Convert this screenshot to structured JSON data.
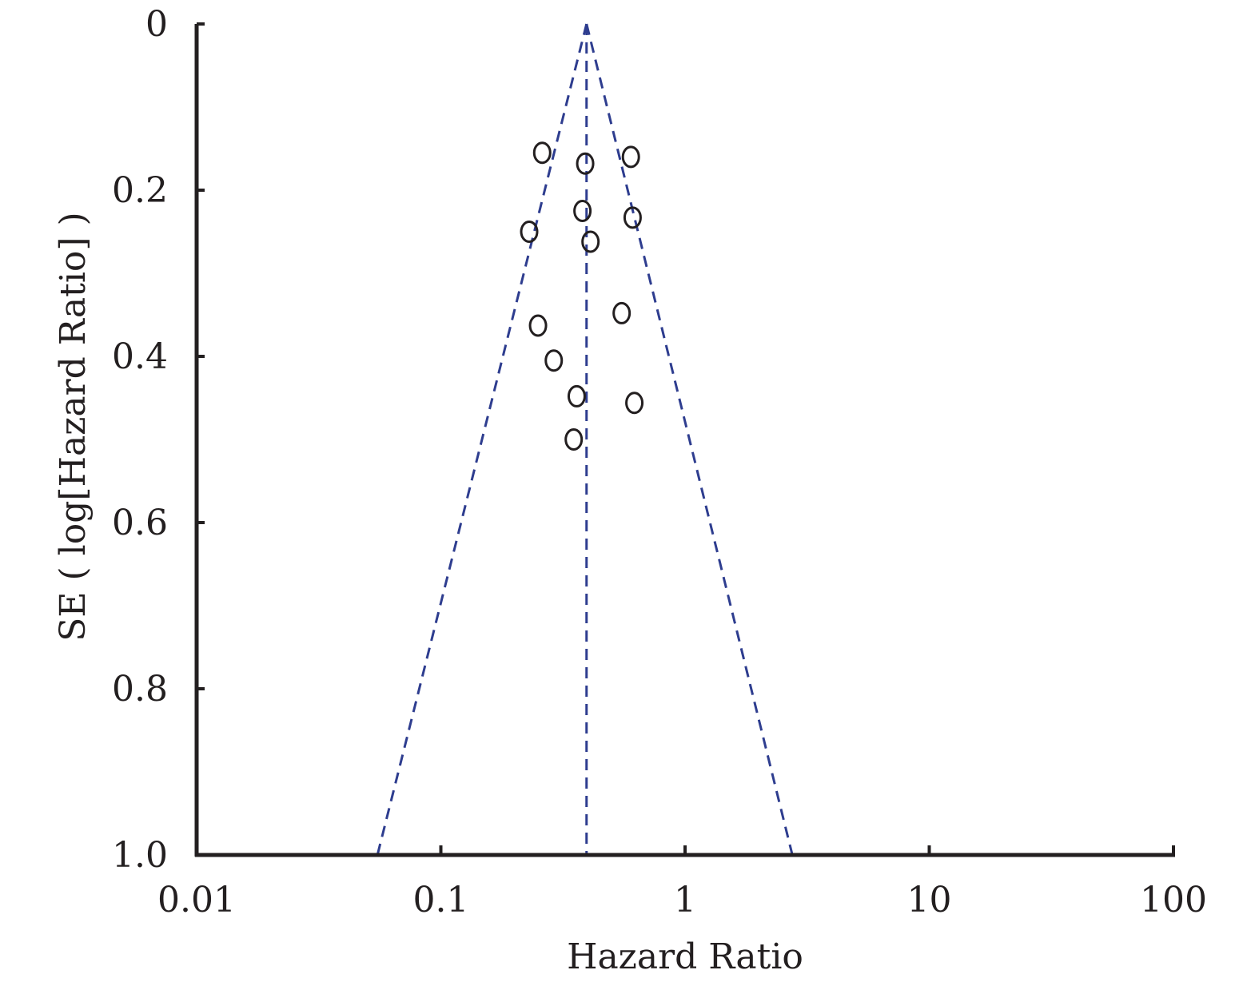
{
  "chart_data": {
    "type": "scatter",
    "title": "",
    "xlabel": "Hazard Ratio",
    "ylabel": "SE ( log[Hazard Ratio] )",
    "x_scale": "log",
    "y_axis_inverted": true,
    "xlim": [
      0.01,
      100
    ],
    "ylim": [
      0,
      1.0
    ],
    "x_ticks": [
      {
        "value": 0.01,
        "label": "0.01"
      },
      {
        "value": 0.1,
        "label": "0.1"
      },
      {
        "value": 1,
        "label": "1"
      },
      {
        "value": 10,
        "label": "10"
      },
      {
        "value": 100,
        "label": "100"
      }
    ],
    "y_ticks": [
      {
        "value": 0,
        "label": "0"
      },
      {
        "value": 0.2,
        "label": "0.2"
      },
      {
        "value": 0.4,
        "label": "0.4"
      },
      {
        "value": 0.6,
        "label": "0.6"
      },
      {
        "value": 0.8,
        "label": "0.8"
      },
      {
        "value": 1.0,
        "label": "1.0"
      }
    ],
    "pooled_hr": 0.395,
    "funnel_bounds_at_se_1": [
      0.055,
      2.75
    ],
    "points": [
      {
        "x": 0.26,
        "y": 0.155
      },
      {
        "x": 0.39,
        "y": 0.168
      },
      {
        "x": 0.6,
        "y": 0.16
      },
      {
        "x": 0.38,
        "y": 0.225
      },
      {
        "x": 0.61,
        "y": 0.233
      },
      {
        "x": 0.23,
        "y": 0.25
      },
      {
        "x": 0.41,
        "y": 0.262
      },
      {
        "x": 0.55,
        "y": 0.348
      },
      {
        "x": 0.25,
        "y": 0.363
      },
      {
        "x": 0.29,
        "y": 0.405
      },
      {
        "x": 0.36,
        "y": 0.448
      },
      {
        "x": 0.62,
        "y": 0.456
      },
      {
        "x": 0.35,
        "y": 0.5
      }
    ],
    "grid": false,
    "colors": {
      "axis": "#231f20",
      "points": "#231f20",
      "funnel_lines": "#2e3d8f"
    }
  }
}
